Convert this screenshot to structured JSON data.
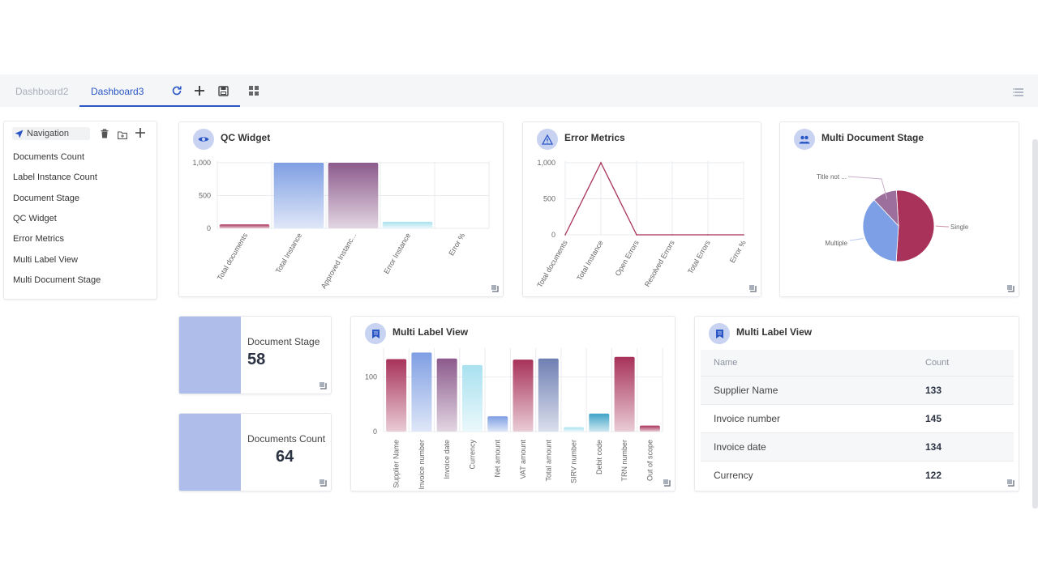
{
  "tabs": [
    {
      "label": "Dashboard2",
      "active": false
    },
    {
      "label": "Dashboard3",
      "active": true
    }
  ],
  "toolbar_icons": [
    "refresh-icon",
    "plus-icon",
    "save-icon",
    "grid-icon",
    "menu-icon"
  ],
  "navigation": {
    "title": "Navigation",
    "items": [
      "Documents Count",
      "Label Instance Count",
      "Document Stage",
      "QC Widget",
      "Error Metrics",
      "Multi Label View",
      "Multi Document Stage"
    ]
  },
  "qc_widget": {
    "title": "QC Widget"
  },
  "error_metrics": {
    "title": "Error Metrics"
  },
  "multi_document_stage": {
    "title": "Multi Document Stage"
  },
  "document_stage": {
    "label": "Document Stage",
    "value": "58"
  },
  "documents_count": {
    "label": "Documents Count",
    "value": "64"
  },
  "multi_label_chart": {
    "title": "Multi Label View"
  },
  "multi_label_table": {
    "title": "Multi Label View",
    "columns": [
      "Name",
      "Count"
    ],
    "rows": [
      {
        "name": "Supplier Name",
        "count": "133"
      },
      {
        "name": "Invoice number",
        "count": "145"
      },
      {
        "name": "Invoice date",
        "count": "134"
      },
      {
        "name": "Currency",
        "count": "122"
      }
    ]
  },
  "chart_data": [
    {
      "type": "bar",
      "title": "QC Widget",
      "categories": [
        "Total documents",
        "Total Instance",
        "Approved Instanc...",
        "Error Instance",
        "Error %"
      ],
      "values": [
        60,
        1000,
        1000,
        100,
        0
      ],
      "colors": [
        "#a8325a",
        "#7f9fe3",
        "#8c5a8c",
        "#a9e1f0",
        "#cccccc"
      ],
      "ylim": [
        0,
        1000
      ],
      "yticks": [
        "0",
        "500",
        "1,000"
      ],
      "grid": true
    },
    {
      "type": "line",
      "title": "Error Metrics",
      "categories": [
        "Total documents",
        "Total Instance",
        "Open Errors",
        "Resolved Errors",
        "Total Errors",
        "Error %"
      ],
      "values": [
        0,
        1000,
        0,
        0,
        0,
        0
      ],
      "color": "#a8325a",
      "ylim": [
        0,
        1000
      ],
      "yticks": [
        "0",
        "500",
        "1,000"
      ],
      "grid": true
    },
    {
      "type": "pie",
      "title": "Multi Document Stage",
      "slices": [
        {
          "label": "Single",
          "value": 52,
          "color": "#a8325a"
        },
        {
          "label": "Multiple",
          "value": 37,
          "color": "#7c9fe6"
        },
        {
          "label": "Title not ...",
          "value": 11,
          "color": "#9c6f9c"
        }
      ]
    },
    {
      "type": "bar",
      "title": "Multi Label View",
      "categories": [
        "Supplier Name",
        "Invoice number",
        "Invoice date",
        "Currency",
        "Net amount",
        "VAT amount",
        "Total amount",
        "SIRV number",
        "Debit code",
        "TRN number",
        "Out of scope"
      ],
      "values": [
        133,
        145,
        134,
        122,
        28,
        132,
        134,
        8,
        33,
        137,
        11
      ],
      "colors": [
        "#a8325a",
        "#7f9fe3",
        "#8c5a8c",
        "#a9e1f0",
        "#7f9fe3",
        "#a8325a",
        "#6f7fb3",
        "#a9e1f0",
        "#3fa4c7",
        "#a8325a",
        "#a8325a"
      ],
      "ylim": [
        0,
        150
      ],
      "yticks": [
        "0",
        "100"
      ],
      "grid": true
    }
  ]
}
